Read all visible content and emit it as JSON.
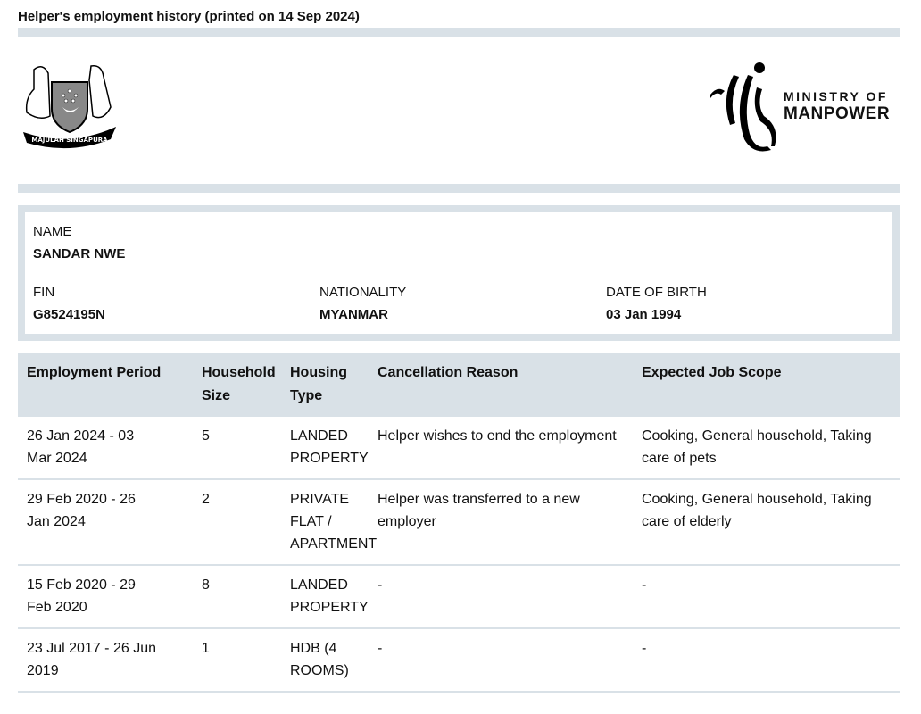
{
  "header": {
    "title": "Helper's employment history (printed on 14 Sep 2024)"
  },
  "logos": {
    "crest_motto": "MAJULAH SINGAPURA",
    "mom_line1": "MINISTRY OF",
    "mom_line2": "MANPOWER"
  },
  "colors": {
    "band": "#d9e1e7"
  },
  "helper": {
    "name_label": "NAME",
    "name": "SANDAR NWE",
    "fin_label": "FIN",
    "fin": "G8524195N",
    "nationality_label": "NATIONALITY",
    "nationality": "MYANMAR",
    "dob_label": "DATE OF BIRTH",
    "dob": "03 Jan 1994"
  },
  "table": {
    "headers": [
      "Employment Period",
      "Household Size",
      "Housing Type",
      "Cancellation Reason",
      "Expected Job Scope"
    ],
    "rows": [
      [
        "26 Jan 2024 - 03 Mar 2024",
        "5",
        "LANDED PROPERTY",
        "Helper wishes to end the employment",
        "Cooking, General household, Taking care of pets"
      ],
      [
        "29 Feb 2020 - 26 Jan 2024",
        "2",
        "PRIVATE FLAT / APARTMENT",
        "Helper was transferred to a new employer",
        "Cooking, General household, Taking care of elderly"
      ],
      [
        "15 Feb 2020 - 29 Feb 2020",
        "8",
        "LANDED PROPERTY",
        "-",
        "-"
      ],
      [
        "23 Jul 2017 - 26 Jun 2019",
        "1",
        "HDB (4 ROOMS)",
        "-",
        "-"
      ]
    ]
  }
}
